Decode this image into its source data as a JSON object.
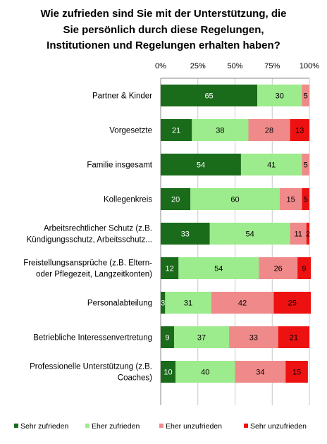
{
  "title_lines": [
    "Wie zufrieden sind Sie mit der Unterstützung, die",
    "Sie persönlich durch diese Regelungen,",
    "Institutionen und Regelungen erhalten haben?"
  ],
  "chart_data": {
    "type": "bar",
    "orientation": "horizontal",
    "stacked": true,
    "xlim": [
      0,
      100
    ],
    "xticks": [
      "0%",
      "25%",
      "50%",
      "75%",
      "100%"
    ],
    "axis_position": "top",
    "grid": true,
    "legend_position": "bottom",
    "categories": [
      [
        "Partner & Kinder"
      ],
      [
        "Vorgesetzte"
      ],
      [
        "Familie insgesamt"
      ],
      [
        "Kollegenkreis"
      ],
      [
        "Arbeitsrechtlicher Schutz (z.B.",
        "Kündigungsschutz, Arbeitsschutz..."
      ],
      [
        "Freistellungsansprüche (z.B. Eltern-",
        "oder Pflegezeit, Langzeitkonten)"
      ],
      [
        "Personalabteilung"
      ],
      [
        "Betriebliche Interessenvertretung"
      ],
      [
        "Professionelle Unterstützung (z.B.",
        "Coaches)"
      ]
    ],
    "series": [
      {
        "name": "Sehr zufrieden",
        "color": "#1a6b1a",
        "label_color": "#ffffff",
        "values": [
          65,
          21,
          54,
          20,
          33,
          12,
          3,
          9,
          10
        ]
      },
      {
        "name": "Eher zufrieden",
        "color": "#9ceb8c",
        "label_color": "#000000",
        "values": [
          30,
          38,
          41,
          60,
          54,
          54,
          31,
          37,
          40
        ]
      },
      {
        "name": "Eher unzufrieden",
        "color": "#f08a8a",
        "label_color": "#000000",
        "values": [
          5,
          28,
          5,
          15,
          11,
          26,
          42,
          33,
          34
        ]
      },
      {
        "name": "Sehr unzufrieden",
        "color": "#ee1111",
        "label_color": "#000000",
        "values": [
          0,
          13,
          0,
          5,
          2,
          9,
          25,
          21,
          15
        ]
      }
    ],
    "data_labels": [
      [
        "65",
        "30",
        "5",
        "0"
      ],
      [
        "21",
        "38",
        "28",
        "13"
      ],
      [
        "54",
        "41",
        "5",
        "0"
      ],
      [
        "20",
        "60",
        "15",
        "5"
      ],
      [
        "33",
        "54",
        "11",
        "2"
      ],
      [
        "12",
        "54",
        "26",
        "9"
      ],
      [
        "3",
        "31",
        "42",
        "25"
      ],
      [
        "9",
        "37",
        "33",
        "21"
      ],
      [
        "10",
        "40",
        "34",
        "15"
      ]
    ]
  }
}
